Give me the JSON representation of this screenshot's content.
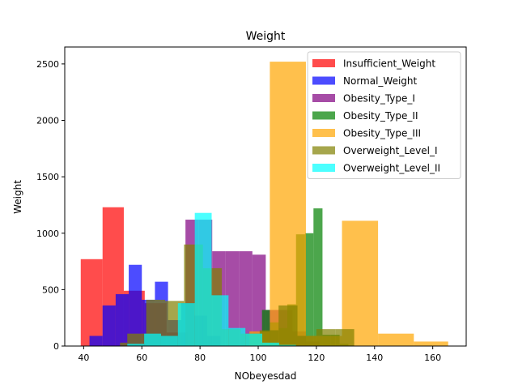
{
  "chart_data": {
    "type": "bar",
    "title": "Weight",
    "xlabel": "NObeyesdad",
    "ylabel": "Weight",
    "xlim": [
      33.5,
      171.5
    ],
    "ylim": [
      0,
      2650
    ],
    "xticks": [
      40,
      60,
      80,
      100,
      120,
      140,
      160
    ],
    "yticks": [
      0,
      500,
      1000,
      1500,
      2000,
      2500
    ],
    "grid": false,
    "legend_position": "top-right",
    "series": [
      {
        "name": "Insufficient_Weight",
        "color": "#ff0000",
        "alpha": 0.7,
        "bins": [
          [
            39,
            46.5,
            770
          ],
          [
            46.5,
            53.8,
            1230
          ],
          [
            53.8,
            61,
            490
          ],
          [
            61,
            68.5,
            380
          ],
          [
            68.5,
            75.8,
            120
          ],
          [
            75.8,
            83,
            10
          ]
        ]
      },
      {
        "name": "Normal_Weight",
        "color": "#0000ff",
        "alpha": 0.7,
        "bins": [
          [
            42,
            46.5,
            90
          ],
          [
            46.5,
            51,
            360
          ],
          [
            51,
            55.5,
            460
          ],
          [
            55.5,
            60,
            720
          ],
          [
            60,
            64.5,
            410
          ],
          [
            64.5,
            69,
            570
          ],
          [
            69,
            73.5,
            230
          ],
          [
            73.5,
            78,
            380
          ],
          [
            78,
            82.5,
            270
          ],
          [
            82.5,
            87,
            90
          ]
        ]
      },
      {
        "name": "Obesity_Type_I",
        "color": "#800080",
        "alpha": 0.7,
        "bins": [
          [
            75,
            79.6,
            1120
          ],
          [
            79.6,
            84.2,
            1120
          ],
          [
            84.2,
            88.8,
            840
          ],
          [
            88.8,
            93.4,
            840
          ],
          [
            93.4,
            98,
            840
          ],
          [
            98,
            102.6,
            810
          ],
          [
            102.6,
            107.2,
            320
          ],
          [
            107.2,
            111.8,
            320
          ],
          [
            111.8,
            116.4,
            130
          ],
          [
            116.4,
            121,
            40
          ]
        ]
      },
      {
        "name": "Obesity_Type_II",
        "color": "#008000",
        "alpha": 0.7,
        "bins": [
          [
            101.3,
            104,
            320
          ],
          [
            104,
            107.1,
            210
          ],
          [
            107.1,
            110,
            160
          ],
          [
            110,
            113,
            370
          ],
          [
            113,
            116.1,
            990
          ],
          [
            116.1,
            119,
            1000
          ],
          [
            119,
            122.1,
            1220
          ],
          [
            122.1,
            125,
            100
          ],
          [
            125,
            128,
            100
          ],
          [
            128,
            131,
            20
          ]
        ]
      },
      {
        "name": "Obesity_Type_III",
        "color": "#ffa500",
        "alpha": 0.7,
        "bins": [
          [
            97,
            104,
            130
          ],
          [
            104,
            116.4,
            2520
          ],
          [
            116.4,
            128.8,
            90
          ],
          [
            128.8,
            141.2,
            1110
          ],
          [
            141.2,
            153.5,
            110
          ],
          [
            153.5,
            165.3,
            40
          ]
        ]
      },
      {
        "name": "Overweight_Level_I",
        "color": "#808000",
        "alpha": 0.7,
        "bins": [
          [
            52.5,
            55,
            30
          ],
          [
            55,
            61.5,
            110
          ],
          [
            61.5,
            68,
            410
          ],
          [
            68,
            74.5,
            400
          ],
          [
            74.5,
            81,
            900
          ],
          [
            81,
            87.5,
            690
          ],
          [
            87.5,
            94,
            150
          ],
          [
            94,
            100.5,
            110
          ],
          [
            100.5,
            107,
            140
          ],
          [
            107,
            113.5,
            360
          ],
          [
            113.5,
            120,
            90
          ],
          [
            120,
            126.5,
            150
          ],
          [
            126.5,
            133,
            150
          ]
        ]
      },
      {
        "name": "Overweight_Level_II",
        "color": "#00ffff",
        "alpha": 0.7,
        "bins": [
          [
            55,
            60.8,
            20
          ],
          [
            60.8,
            66.6,
            110
          ],
          [
            66.6,
            72.4,
            90
          ],
          [
            72.4,
            78.2,
            380
          ],
          [
            78.2,
            84,
            1180
          ],
          [
            84,
            89.8,
            450
          ],
          [
            89.8,
            95.6,
            160
          ],
          [
            95.6,
            101.4,
            110
          ],
          [
            101.4,
            107.2,
            30
          ],
          [
            107.2,
            113,
            10
          ]
        ]
      }
    ]
  }
}
